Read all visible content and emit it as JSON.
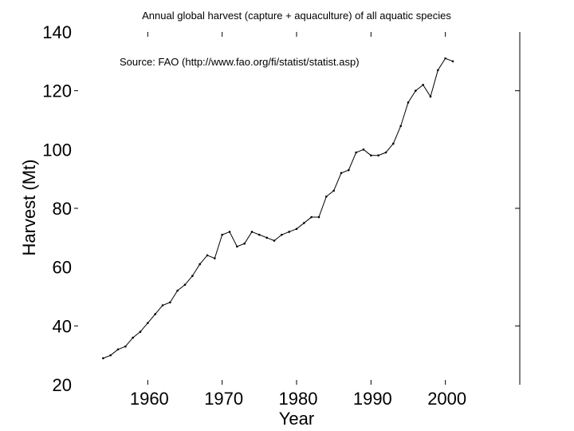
{
  "chart_data": {
    "type": "line",
    "title": "Annual global harvest (capture + aquaculture) of all aquatic species",
    "annotation": "Source:  FAO (http://www.fao.org/fi/statist/statist.asp)",
    "xlabel": "Year",
    "ylabel": "Harvest (Mt)",
    "xlim": [
      1950,
      2010
    ],
    "ylim": [
      20,
      140
    ],
    "xticks": [
      1960,
      1970,
      1980,
      1990,
      2000
    ],
    "yticks": [
      20,
      40,
      60,
      80,
      100,
      120,
      140
    ],
    "grid": false,
    "series": [
      {
        "x": [
          1954,
          1955,
          1956,
          1957,
          1958,
          1959,
          1960,
          1961,
          1962,
          1963,
          1964,
          1965,
          1966,
          1967,
          1968,
          1969,
          1970,
          1971,
          1972,
          1973,
          1974,
          1975,
          1976,
          1977,
          1978,
          1979,
          1980,
          1981,
          1982,
          1983,
          1984,
          1985,
          1986,
          1987,
          1988,
          1989,
          1990,
          1991,
          1992,
          1993,
          1994,
          1995,
          1996,
          1997,
          1998,
          1999,
          2000,
          2001
        ],
        "y": [
          29,
          30,
          32,
          33,
          36,
          38,
          41,
          44,
          47,
          48,
          52,
          54,
          57,
          61,
          64,
          63,
          71,
          72,
          67,
          68,
          72,
          71,
          70,
          69,
          71,
          72,
          73,
          75,
          77,
          77,
          84,
          86,
          92,
          93,
          99,
          100,
          98,
          98,
          99,
          102,
          108,
          116,
          120,
          122,
          118,
          127,
          131,
          130
        ]
      }
    ]
  }
}
